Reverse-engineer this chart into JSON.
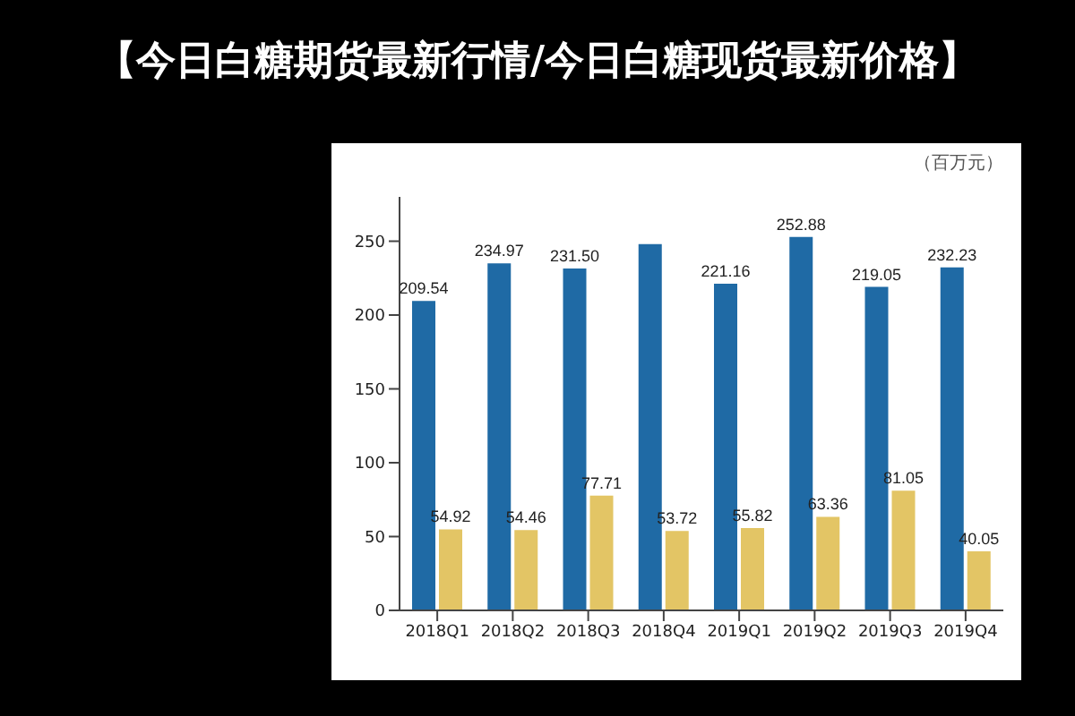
{
  "chart_data": {
    "type": "bar",
    "title": "【今日白糖期货最新行情/今日白糖现货最新价格】",
    "annotations": [
      "（百万元）"
    ],
    "categories": [
      "2018Q1",
      "2018Q2",
      "2018Q3",
      "2018Q4",
      "2019Q1",
      "2019Q2",
      "2019Q3",
      "2019Q4"
    ],
    "series": [
      {
        "color": "#1f6aa5",
        "values": [
          209.54,
          234.97,
          231.5,
          248,
          221.16,
          252.88,
          219.05,
          232.23
        ],
        "value_labels": [
          "209.54",
          "234.97",
          "231.50",
          null,
          "221.16",
          "252.88",
          "219.05",
          "232.23"
        ]
      },
      {
        "color": "#e3c565",
        "values": [
          54.92,
          54.46,
          77.71,
          53.72,
          55.82,
          63.36,
          81.05,
          40.05
        ],
        "value_labels": [
          "54.92",
          "54.46",
          "77.71",
          "53.72",
          "55.82",
          "63.36",
          "81.05",
          "40.05"
        ]
      }
    ],
    "ylim": [
      0,
      280
    ],
    "yticks": [
      0,
      50,
      100,
      150,
      200,
      250
    ],
    "grid": false,
    "legend": false
  }
}
